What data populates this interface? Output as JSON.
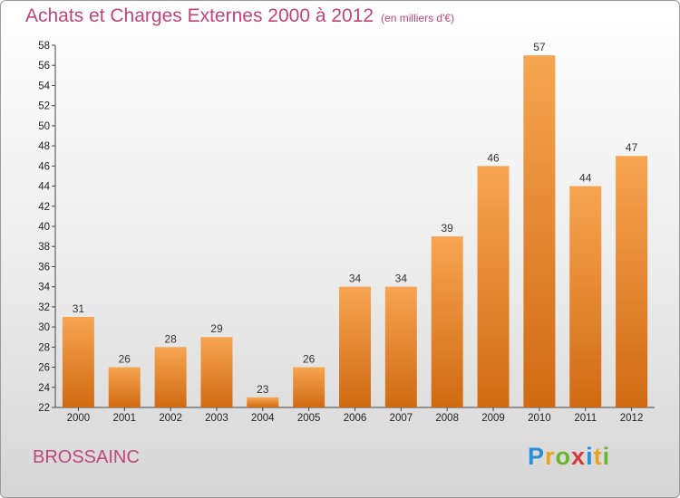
{
  "title": "Achats et Charges Externes 2000 à 2012",
  "subtitle": "(en milliers d'€)",
  "commune": "BROSSAINC",
  "logo": {
    "letters": [
      {
        "ch": "P",
        "color": "#2a8fd6"
      },
      {
        "ch": "r",
        "color": "#e9a21c"
      },
      {
        "ch": "o",
        "color": "#6bb52e"
      },
      {
        "ch": "x",
        "color": "#d6393a"
      },
      {
        "ch": "i",
        "color": "#2a8fd6"
      },
      {
        "ch": "t",
        "color": "#e9a21c"
      },
      {
        "ch": "i",
        "color": "#6bb52e"
      }
    ]
  },
  "colors": {
    "bar_top": "#f7a552",
    "bar_bottom": "#d06a12",
    "title": "#c1447a"
  },
  "chart_data": {
    "type": "bar",
    "title": "Achats et Charges Externes 2000 à 2012",
    "subtitle": "(en milliers d'€)",
    "categories": [
      "2000",
      "2001",
      "2002",
      "2003",
      "2004",
      "2005",
      "2006",
      "2007",
      "2008",
      "2009",
      "2010",
      "2011",
      "2012"
    ],
    "values": [
      31,
      26,
      28,
      29,
      23,
      26,
      34,
      34,
      39,
      46,
      57,
      44,
      47
    ],
    "ylim": [
      22,
      58
    ],
    "yticks": [
      22,
      24,
      26,
      28,
      30,
      32,
      34,
      36,
      38,
      40,
      42,
      44,
      46,
      48,
      50,
      52,
      54,
      56,
      58
    ],
    "grid": false,
    "data_labels": true
  }
}
